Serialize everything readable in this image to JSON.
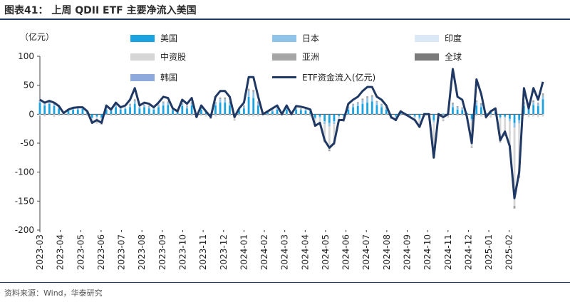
{
  "title": "图表41： 上周 QDII ETF 主要净流入美国",
  "unit_label": "（亿元）",
  "source": "资料来源：Wind，华泰研究",
  "colors": {
    "us": "#1aa3e0",
    "japan": "#8fc3e8",
    "india": "#dbe9f7",
    "china": "#d6d6d6",
    "asia_pacific": "#a6a6a6",
    "global": "#7a7a7a",
    "korea": "#8ea9db",
    "line": "#1f3864",
    "title_rule": "#1f3864"
  },
  "legend": [
    {
      "key": "us",
      "label": "美国"
    },
    {
      "key": "japan",
      "label": "日本"
    },
    {
      "key": "india",
      "label": "印度"
    },
    {
      "key": "china",
      "label": "中资股"
    },
    {
      "key": "asia_pacific",
      "label": "亚洲"
    },
    {
      "key": "global",
      "label": "全球"
    },
    {
      "key": "korea",
      "label": "韩国"
    },
    {
      "key": "line",
      "label": "ETF资金流入(亿元)"
    }
  ],
  "chart_data": {
    "type": "bar",
    "stacked": true,
    "ylim": [
      -200,
      100
    ],
    "yticks": [
      100,
      50,
      0,
      -50,
      -100,
      -150,
      -200
    ],
    "x_tick_labels": [
      "2023-03",
      "2023-04",
      "2023-05",
      "2023-06",
      "2023-07",
      "2023-08",
      "2023-09",
      "2023-10",
      "2023-11",
      "2023-12",
      "2024-01",
      "2024-02",
      "2024-03",
      "2024-04",
      "2024-05",
      "2024-06",
      "2024-07",
      "2024-08",
      "2024-09",
      "2024-10",
      "2024-11",
      "2024-12",
      "2025-01",
      "2025-02"
    ],
    "weeks_per_tick": 4.3,
    "line_series": {
      "name": "ETF资金流入(亿元)",
      "values": [
        25,
        20,
        23,
        20,
        14,
        2,
        8,
        11,
        12,
        12,
        5,
        -15,
        -10,
        -15,
        15,
        8,
        20,
        12,
        15,
        25,
        45,
        15,
        20,
        18,
        12,
        20,
        30,
        28,
        10,
        5,
        25,
        18,
        28,
        -5,
        15,
        5,
        -5,
        30,
        40,
        40,
        30,
        -5,
        10,
        20,
        64,
        64,
        30,
        0,
        5,
        10,
        15,
        0,
        15,
        0,
        14,
        13,
        11,
        8,
        -20,
        -15,
        -45,
        -58,
        -50,
        -10,
        -10,
        18,
        25,
        30,
        40,
        47,
        47,
        30,
        25,
        15,
        -5,
        -10,
        5,
        0,
        -5,
        -10,
        -22,
        0,
        0,
        -75,
        0,
        -5,
        0,
        78,
        30,
        25,
        -5,
        -50,
        60,
        35,
        -5,
        5,
        10,
        -45,
        -30,
        -55,
        -145,
        -100,
        45,
        10,
        45,
        25,
        56
      ],
      "unit": "亿元"
    },
    "series": [
      {
        "name": "美国",
        "key": "us",
        "values": [
          20,
          15,
          18,
          14,
          10,
          2,
          6,
          8,
          8,
          9,
          4,
          -6,
          -4,
          -6,
          8,
          6,
          12,
          8,
          9,
          12,
          18,
          10,
          12,
          10,
          8,
          12,
          15,
          16,
          7,
          5,
          14,
          10,
          15,
          -2,
          8,
          3,
          -3,
          15,
          20,
          20,
          15,
          -3,
          6,
          10,
          30,
          28,
          15,
          2,
          3,
          5,
          8,
          2,
          8,
          1,
          8,
          7,
          6,
          5,
          -6,
          -4,
          -12,
          -15,
          -12,
          -3,
          -3,
          8,
          12,
          14,
          18,
          20,
          22,
          16,
          12,
          8,
          -2,
          -3,
          3,
          2,
          -1,
          -3,
          -6,
          2,
          1,
          -10,
          2,
          1,
          2,
          12,
          8,
          7,
          2,
          -8,
          15,
          12,
          2,
          3,
          5,
          -5,
          -4,
          -8,
          -15,
          -10,
          14,
          12,
          16,
          14,
          26
        ]
      },
      {
        "name": "日本",
        "key": "japan",
        "values": [
          3,
          3,
          2,
          3,
          2,
          0,
          1,
          2,
          2,
          1,
          1,
          -1,
          -1,
          -1,
          2,
          1,
          3,
          2,
          2,
          4,
          5,
          2,
          3,
          3,
          2,
          3,
          5,
          4,
          2,
          1,
          4,
          3,
          4,
          -1,
          2,
          1,
          -1,
          4,
          6,
          6,
          5,
          -1,
          2,
          3,
          10,
          10,
          5,
          0,
          1,
          2,
          2,
          0,
          2,
          0,
          2,
          2,
          2,
          1,
          -2,
          -2,
          -5,
          -6,
          -5,
          -1,
          -1,
          3,
          4,
          5,
          6,
          8,
          8,
          5,
          4,
          3,
          -1,
          -2,
          1,
          0,
          -1,
          -2,
          -3,
          0,
          0,
          -4,
          0,
          -1,
          0,
          5,
          4,
          3,
          0,
          -3,
          6,
          5,
          0,
          1,
          2,
          -2,
          -2,
          -4,
          -8,
          -6,
          4,
          3,
          5,
          4,
          6
        ]
      },
      {
        "name": "中资股",
        "key": "china",
        "values": [
          -3,
          -4,
          -2,
          -5,
          -3,
          -2,
          -3,
          -2,
          -3,
          -3,
          -3,
          -8,
          -10,
          -10,
          -2,
          -3,
          -3,
          -2,
          -2,
          -2,
          -3,
          -3,
          -3,
          -3,
          -3,
          -3,
          -3,
          -3,
          -2,
          -2,
          -3,
          -3,
          -3,
          -2,
          -3,
          -4,
          -3,
          -4,
          -3,
          -3,
          -3,
          -6,
          -3,
          -3,
          -4,
          -4,
          -4,
          -2,
          -3,
          -3,
          -3,
          -3,
          -3,
          -2,
          -2,
          -2,
          -3,
          -4,
          -12,
          -10,
          -30,
          -40,
          -34,
          -8,
          -8,
          -2,
          -2,
          -2,
          -2,
          -2,
          -2,
          -2,
          -2,
          -2,
          -4,
          -6,
          -3,
          -3,
          -3,
          -6,
          -12,
          -5,
          -10,
          -60,
          -8,
          -10,
          -6,
          -2,
          -3,
          -3,
          -6,
          -45,
          -3,
          -4,
          -8,
          -6,
          -4,
          -40,
          -30,
          -45,
          -135,
          -90,
          -3,
          -5,
          -4,
          -5,
          -4
        ]
      },
      {
        "name": "亚洲",
        "key": "asia_pacific",
        "values": [
          2,
          2,
          2,
          2,
          1,
          1,
          1,
          1,
          1,
          1,
          1,
          -1,
          -1,
          -1,
          1,
          1,
          2,
          1,
          1,
          2,
          3,
          1,
          2,
          2,
          1,
          2,
          2,
          2,
          1,
          1,
          2,
          2,
          2,
          -1,
          1,
          1,
          -1,
          2,
          3,
          3,
          2,
          -1,
          1,
          2,
          4,
          4,
          2,
          0,
          1,
          1,
          1,
          0,
          1,
          0,
          1,
          1,
          1,
          1,
          -1,
          -1,
          -2,
          -3,
          -2,
          -1,
          -1,
          2,
          2,
          2,
          3,
          3,
          3,
          2,
          2,
          2,
          -1,
          -1,
          1,
          0,
          -1,
          -1,
          -2,
          0,
          0,
          -2,
          0,
          -1,
          0,
          3,
          2,
          2,
          0,
          -2,
          3,
          2,
          0,
          1,
          1,
          -2,
          -2,
          -3,
          -5,
          -4,
          3,
          2,
          3,
          2,
          4
        ]
      }
    ]
  }
}
